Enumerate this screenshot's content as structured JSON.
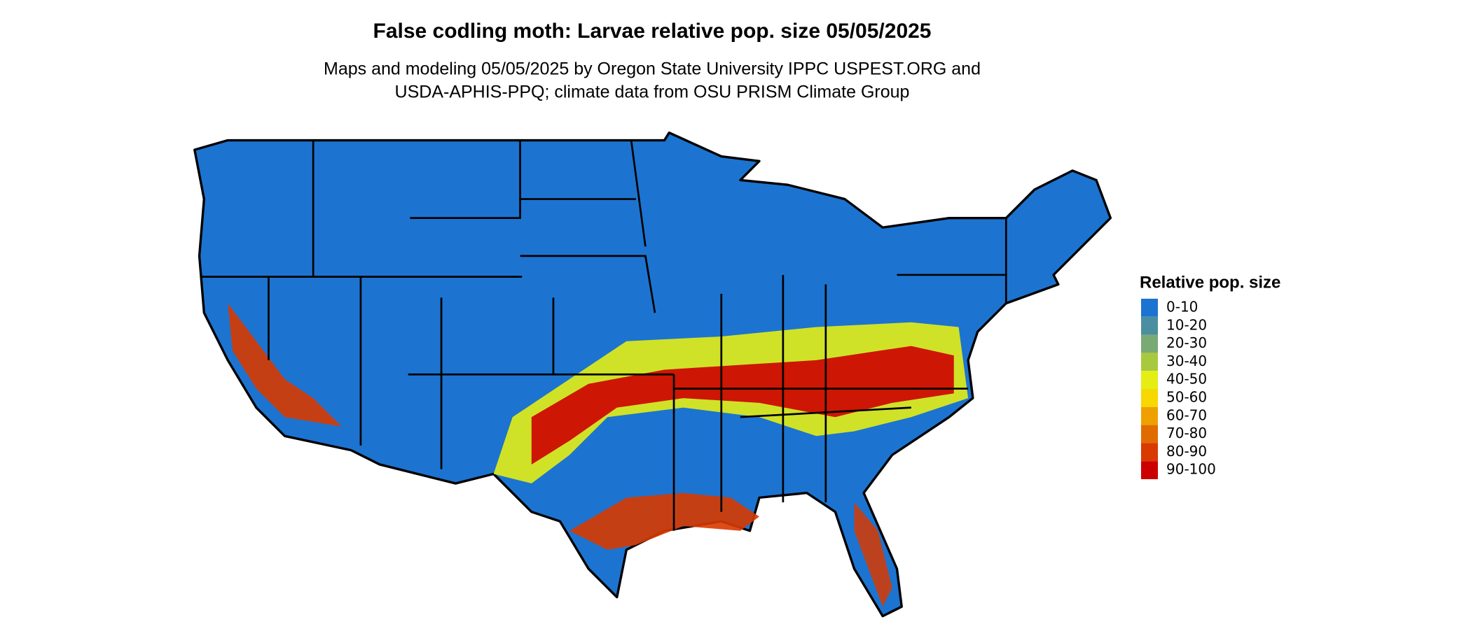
{
  "header": {
    "title": "False codling moth: Larvae relative pop. size 05/05/2025",
    "subtitle": [
      "Maps and modeling 05/05/2025 by Oregon State University IPPC USPEST.ORG and",
      "USDA-APHIS-PPQ; climate data from OSU PRISM Climate Group"
    ]
  },
  "legend": {
    "title": "Relative pop. size",
    "items": [
      {
        "label": "0-10",
        "color": "#1c74d0"
      },
      {
        "label": "10-20",
        "color": "#4a8fa0"
      },
      {
        "label": "20-30",
        "color": "#7aaa73"
      },
      {
        "label": "30-40",
        "color": "#a8c93d"
      },
      {
        "label": "40-50",
        "color": "#e4ee14"
      },
      {
        "label": "50-60",
        "color": "#f7d800"
      },
      {
        "label": "60-70",
        "color": "#eea000"
      },
      {
        "label": "70-80",
        "color": "#e06b00"
      },
      {
        "label": "80-90",
        "color": "#d83a00"
      },
      {
        "label": "90-100",
        "color": "#cc0000"
      }
    ]
  }
}
